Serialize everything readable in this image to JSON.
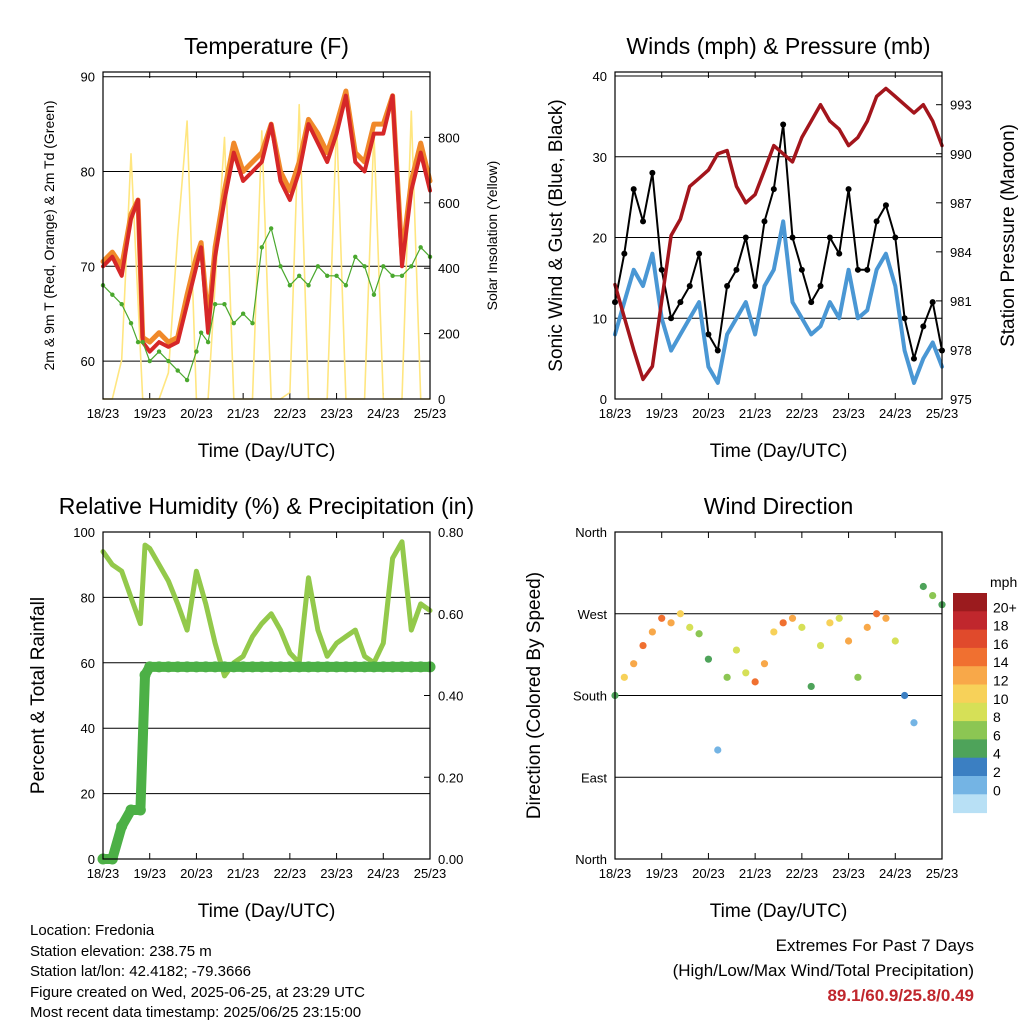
{
  "colors": {
    "t2m": "#d62728",
    "t9m": "#f0892a",
    "td": "#4aa82e",
    "solar": "#ffe680",
    "wind": "#4a97d4",
    "gust": "#000000",
    "pressure": "#a3151c",
    "rh": "#93c94b",
    "precip": "#4cb046",
    "extremes": "#c0272d"
  },
  "chart_data": [
    {
      "type": "line",
      "title": "Temperature (F)",
      "xlabel": "Time (Day/UTC)",
      "ylabel": "2m & 9m T (Red, Orange) & 2m Td (Green)",
      "ylabel_right": "Solar Insolation (Yellow)",
      "x_ticks": [
        "18/23",
        "19/23",
        "20/23",
        "21/23",
        "22/23",
        "23/23",
        "24/23",
        "25/23"
      ],
      "ylim": [
        56,
        90.5
      ],
      "y_ticks": [
        60,
        70,
        80,
        90
      ],
      "ylim_right": [
        0,
        1000
      ],
      "y_ticks_right": [
        0,
        200,
        400,
        600,
        800
      ],
      "x": [
        0,
        0.2,
        0.4,
        0.6,
        0.75,
        0.85,
        1.0,
        1.2,
        1.4,
        1.6,
        1.8,
        2.0,
        2.1,
        2.25,
        2.4,
        2.6,
        2.8,
        3.0,
        3.2,
        3.4,
        3.6,
        3.8,
        4.0,
        4.2,
        4.4,
        4.6,
        4.8,
        5.0,
        5.2,
        5.4,
        5.6,
        5.8,
        6.0,
        6.2,
        6.4,
        6.6,
        6.8,
        7.0
      ],
      "series": [
        {
          "name": "2m T",
          "values": [
            70,
            71,
            69,
            75,
            77,
            62,
            61,
            62,
            61.5,
            62,
            66,
            70,
            72,
            63,
            71,
            77,
            82,
            79,
            80,
            81,
            85,
            79,
            77,
            80,
            85,
            83,
            81,
            84,
            88,
            81,
            80,
            84,
            84,
            88,
            70,
            78,
            82,
            78
          ]
        },
        {
          "name": "9m T",
          "values": [
            70.5,
            71.5,
            70,
            75.5,
            77,
            62.5,
            62,
            63,
            62,
            62.5,
            67,
            71,
            72.5,
            64,
            72,
            78,
            83,
            80,
            81,
            82,
            85,
            80,
            78,
            81,
            85.5,
            84,
            82,
            85,
            88.5,
            82,
            81,
            85,
            85,
            88,
            71,
            79,
            83,
            79
          ]
        },
        {
          "name": "2m Td",
          "values": [
            68,
            67,
            66,
            64,
            62,
            62,
            60,
            61,
            60,
            59,
            58,
            61,
            63,
            62,
            66,
            66,
            64,
            65,
            64,
            72,
            74,
            70,
            68,
            69,
            68,
            70,
            69,
            69,
            68,
            71,
            70,
            67,
            70,
            69,
            69,
            70,
            72,
            71
          ]
        },
        {
          "name": "Solar",
          "values": [
            0,
            0,
            120,
            750,
            300,
            0,
            0,
            0,
            80,
            500,
            850,
            0,
            0,
            0,
            350,
            800,
            0,
            0,
            0,
            820,
            0,
            0,
            20,
            900,
            0,
            0,
            0,
            850,
            0,
            0,
            0,
            820,
            0,
            0,
            0,
            880,
            0,
            0
          ]
        }
      ]
    },
    {
      "type": "line",
      "title": "Winds (mph) & Pressure (mb)",
      "xlabel": "Time (Day/UTC)",
      "ylabel": "Sonic Wind & Gust (Blue, Black)",
      "ylabel_right": "Station Pressure (Maroon)",
      "x_ticks": [
        "18/23",
        "19/23",
        "20/23",
        "21/23",
        "22/23",
        "23/23",
        "24/23",
        "25/23"
      ],
      "ylim": [
        0,
        40.5
      ],
      "y_ticks": [
        0,
        10,
        20,
        30,
        40
      ],
      "ylim_right": [
        975,
        995
      ],
      "y_ticks_right": [
        975,
        978,
        981,
        984,
        987,
        990,
        993
      ],
      "x": [
        0,
        0.2,
        0.4,
        0.6,
        0.8,
        1.0,
        1.2,
        1.4,
        1.6,
        1.8,
        2.0,
        2.2,
        2.4,
        2.6,
        2.8,
        3.0,
        3.2,
        3.4,
        3.6,
        3.8,
        4.0,
        4.2,
        4.4,
        4.6,
        4.8,
        5.0,
        5.2,
        5.4,
        5.6,
        5.8,
        6.0,
        6.2,
        6.4,
        6.6,
        6.8,
        7.0
      ],
      "series": [
        {
          "name": "Sonic Wind",
          "values": [
            8,
            12,
            16,
            14,
            18,
            10,
            6,
            8,
            10,
            12,
            4,
            2,
            8,
            10,
            12,
            8,
            14,
            16,
            22,
            12,
            10,
            8,
            9,
            12,
            10,
            16,
            10,
            11,
            16,
            18,
            14,
            6,
            2,
            5,
            7,
            4
          ]
        },
        {
          "name": "Gust",
          "values": [
            12,
            18,
            26,
            22,
            28,
            16,
            10,
            12,
            14,
            18,
            8,
            6,
            14,
            16,
            20,
            14,
            22,
            26,
            34,
            20,
            16,
            12,
            14,
            20,
            18,
            26,
            16,
            16,
            22,
            24,
            20,
            10,
            5,
            9,
            12,
            6
          ]
        },
        {
          "name": "Station Pressure",
          "values": [
            982,
            980,
            978,
            976.2,
            977,
            981,
            985,
            986,
            988,
            988.5,
            989,
            990,
            990.2,
            988,
            987,
            987.5,
            989,
            990.5,
            990,
            989.5,
            991,
            992,
            993,
            992,
            991.5,
            990.5,
            991,
            992,
            993.5,
            994,
            993.5,
            993,
            992.5,
            993,
            992,
            990.5
          ]
        }
      ]
    },
    {
      "type": "line",
      "title": "Relative Humidity (%) & Precipitation (in)",
      "xlabel": "Time (Day/UTC)",
      "ylabel": "Percent & Total Rainfall",
      "x_ticks": [
        "18/23",
        "19/23",
        "20/23",
        "21/23",
        "22/23",
        "23/23",
        "24/23",
        "25/23"
      ],
      "ylim": [
        0,
        100
      ],
      "y_ticks": [
        0,
        20,
        40,
        60,
        80,
        100
      ],
      "ylim_right": [
        0,
        0.8
      ],
      "y_ticks_right": [
        "0.00",
        "0.20",
        "0.40",
        "0.60",
        "0.80"
      ],
      "x": [
        0,
        0.2,
        0.4,
        0.6,
        0.8,
        0.9,
        1.0,
        1.2,
        1.4,
        1.6,
        1.8,
        2.0,
        2.2,
        2.4,
        2.6,
        2.8,
        3.0,
        3.2,
        3.4,
        3.6,
        3.8,
        4.0,
        4.2,
        4.4,
        4.6,
        4.8,
        5.0,
        5.2,
        5.4,
        5.6,
        5.8,
        6.0,
        6.2,
        6.4,
        6.6,
        6.8,
        7.0
      ],
      "series": [
        {
          "name": "Relative Humidity",
          "values": [
            94,
            90,
            88,
            80,
            72,
            96,
            95,
            90,
            85,
            78,
            70,
            88,
            78,
            66,
            56,
            60,
            62,
            68,
            72,
            75,
            70,
            63,
            60,
            86,
            70,
            62,
            66,
            68,
            70,
            62,
            60,
            66,
            92,
            97,
            70,
            78,
            76
          ]
        },
        {
          "name": "Total Rainfall",
          "values": [
            0,
            0,
            0.08,
            0.12,
            0.12,
            0.45,
            0.47,
            0.47,
            0.47,
            0.47,
            0.47,
            0.47,
            0.47,
            0.47,
            0.47,
            0.47,
            0.47,
            0.47,
            0.47,
            0.47,
            0.47,
            0.47,
            0.47,
            0.47,
            0.47,
            0.47,
            0.47,
            0.47,
            0.47,
            0.47,
            0.47,
            0.47,
            0.47,
            0.47,
            0.47,
            0.47,
            0.47
          ]
        }
      ]
    },
    {
      "type": "scatter",
      "title": "Wind Direction",
      "xlabel": "Time (Day/UTC)",
      "ylabel": "Direction (Colored By Speed)",
      "x_ticks": [
        "18/23",
        "19/23",
        "20/23",
        "21/23",
        "22/23",
        "23/23",
        "24/23",
        "25/23"
      ],
      "y_ticks": [
        "North",
        "East",
        "South",
        "West",
        "North"
      ],
      "ylim": [
        0,
        360
      ],
      "colorbar_title": "mph",
      "colorbar_labels": [
        "20+",
        "18",
        "16",
        "14",
        "12",
        "10",
        "8",
        "6",
        "4",
        "2",
        "0"
      ],
      "colorbar_colors": [
        "#9b1b1e",
        "#c0272d",
        "#e04a2c",
        "#f07030",
        "#f8a849",
        "#f7d159",
        "#d6e057",
        "#8cc653",
        "#4ea35a",
        "#3b7fc2",
        "#74b4e4",
        "#b8e0f5"
      ],
      "x": [
        0,
        0.2,
        0.4,
        0.6,
        0.8,
        1.0,
        1.2,
        1.4,
        1.6,
        1.8,
        2.0,
        2.2,
        2.4,
        2.6,
        2.8,
        3.0,
        3.2,
        3.4,
        3.6,
        3.8,
        4.0,
        4.2,
        4.4,
        4.6,
        4.8,
        5.0,
        5.2,
        5.4,
        5.6,
        5.8,
        6.0,
        6.2,
        6.4,
        6.6,
        6.8,
        7.0
      ],
      "values": [
        180,
        200,
        215,
        235,
        250,
        265,
        260,
        270,
        255,
        248,
        220,
        120,
        200,
        230,
        205,
        195,
        215,
        250,
        260,
        265,
        255,
        190,
        235,
        260,
        265,
        240,
        200,
        255,
        270,
        265,
        240,
        180,
        150,
        300,
        290,
        280
      ],
      "speeds": [
        6,
        12,
        14,
        16,
        14,
        16,
        14,
        12,
        10,
        8,
        6,
        2,
        8,
        10,
        10,
        16,
        14,
        12,
        16,
        14,
        10,
        6,
        10,
        12,
        10,
        14,
        8,
        14,
        16,
        14,
        10,
        4,
        2,
        6,
        8,
        6
      ]
    }
  ],
  "info": {
    "location": "Location: Fredonia",
    "elevation": "Station elevation: 238.75 m",
    "latlon": "Station lat/lon: 42.4182; -79.3666",
    "created": "Figure created on Wed, 2025-06-25, at 23:29 UTC",
    "recent": "Most recent data timestamp: 2025/06/25 23:15:00"
  },
  "extremes": {
    "title": "Extremes For Past 7 Days",
    "subtitle": "(High/Low/Max Wind/Total Precipitation)",
    "values": "89.1/60.9/25.8/0.49"
  }
}
